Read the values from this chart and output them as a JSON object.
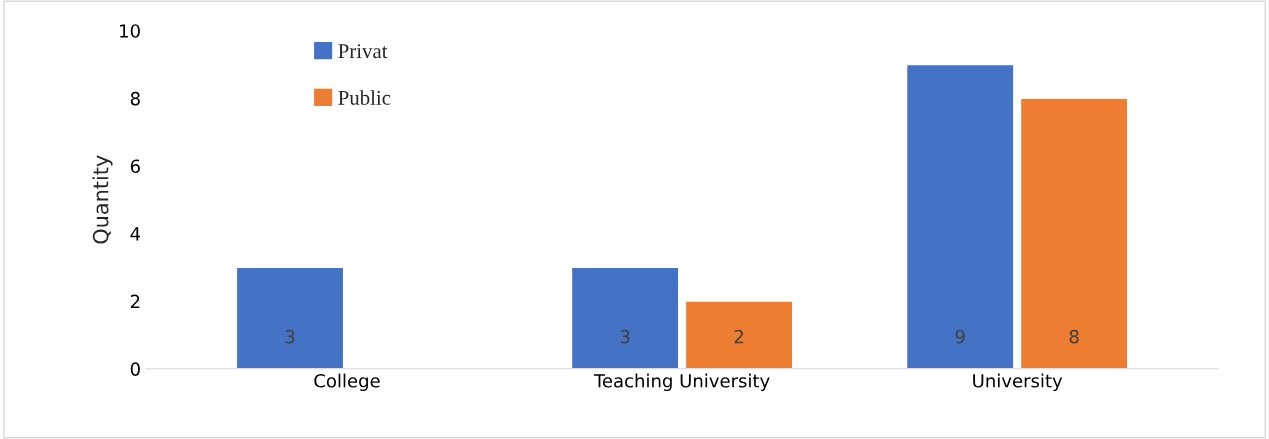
{
  "chart_data": {
    "type": "bar",
    "ylabel": "Quantity",
    "categories": [
      "College",
      "Teaching University",
      "University"
    ],
    "series": [
      {
        "name": "Privat",
        "color": "#4472c4",
        "values": [
          3,
          3,
          9
        ]
      },
      {
        "name": "Public",
        "color": "#ed7d31",
        "values": [
          null,
          2,
          8
        ]
      }
    ],
    "ylim": [
      0,
      10
    ],
    "yticks": [
      0,
      2,
      4,
      6,
      8,
      10
    ],
    "grid": false,
    "legend": "top left",
    "data_labels": true
  }
}
